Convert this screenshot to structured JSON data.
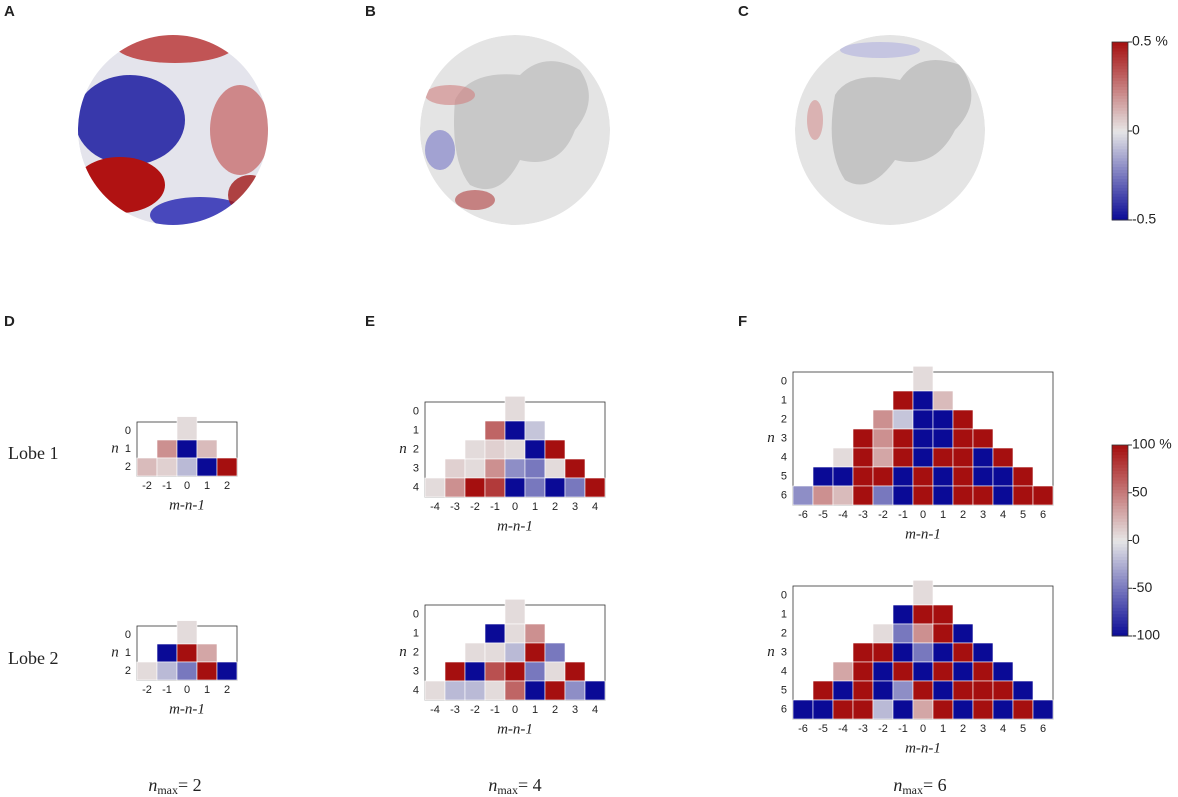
{
  "panel_letters": [
    "A",
    "B",
    "C",
    "D",
    "E",
    "F"
  ],
  "row_labels": [
    "Lobe 1",
    "Lobe 2"
  ],
  "colorbar_top": {
    "ylim": [
      -0.5,
      0.5
    ],
    "yticks": [
      -0.5,
      0,
      {
        "value": 0.5,
        "label": "0.5 %"
      }
    ]
  },
  "colorbar_bottom": {
    "ylim": [
      -100,
      100
    ],
    "yticks": [
      -100,
      -50,
      0,
      50,
      {
        "value": 100,
        "label": "100 %"
      }
    ]
  },
  "heatmaps": [
    {
      "nmax": {
        "n": "n",
        "sub": "max",
        "eq": "= 2"
      },
      "xlabel": "m-n-1",
      "ylabel": "n",
      "x_ticks": [
        -2,
        -1,
        0,
        1,
        2
      ],
      "y_ticks": [
        0,
        1,
        2
      ],
      "lobes": [
        [
          [
            5
          ],
          [
            40,
            -100,
            20
          ],
          [
            20,
            10,
            -20,
            -100,
            100
          ]
        ],
        [
          [
            5
          ],
          [
            -100,
            100,
            30
          ],
          [
            5,
            -20,
            -50,
            100,
            -100
          ]
        ]
      ]
    },
    {
      "nmax": {
        "n": "n",
        "sub": "max",
        "eq": "= 4"
      },
      "xlabel": "m-n-1",
      "ylabel": "n",
      "x_ticks": [
        -4,
        -3,
        -2,
        -1,
        0,
        1,
        2,
        3,
        4
      ],
      "y_ticks": [
        0,
        1,
        2,
        3,
        4
      ],
      "lobes": [
        [
          [
            5
          ],
          [
            60,
            -100,
            -15
          ],
          [
            5,
            10,
            5,
            -100,
            100
          ],
          [
            10,
            5,
            40,
            -40,
            -50,
            5,
            100
          ],
          [
            5,
            40,
            100,
            80,
            -100,
            -50,
            -100,
            -50,
            100
          ]
        ],
        [
          [
            5
          ],
          [
            -100,
            5,
            40
          ],
          [
            5,
            5,
            -20,
            100,
            -50
          ],
          [
            100,
            -100,
            70,
            100,
            -50,
            5,
            100
          ],
          [
            5,
            -20,
            -20,
            5,
            60,
            -100,
            100,
            -40,
            -100
          ]
        ]
      ]
    },
    {
      "nmax": {
        "n": "n",
        "sub": "max",
        "eq": "= 6"
      },
      "xlabel": "m-n-1",
      "ylabel": "n",
      "x_ticks": [
        -6,
        -5,
        -4,
        -3,
        -2,
        -1,
        0,
        1,
        2,
        3,
        4,
        5,
        6
      ],
      "y_ticks": [
        0,
        1,
        2,
        3,
        4,
        5,
        6
      ],
      "lobes": [
        [
          [
            5
          ],
          [
            100,
            -100,
            20
          ],
          [
            40,
            -15,
            -100,
            -100,
            100
          ],
          [
            100,
            40,
            100,
            -100,
            -100,
            100,
            100
          ],
          [
            5,
            100,
            30,
            100,
            -100,
            100,
            100,
            -100,
            100
          ],
          [
            -100,
            -100,
            100,
            100,
            -100,
            100,
            -100,
            100,
            -100,
            -100,
            100
          ],
          [
            -40,
            40,
            20,
            100,
            -50,
            -100,
            100,
            -100,
            100,
            100,
            -100,
            100,
            100
          ]
        ],
        [
          [
            5
          ],
          [
            -100,
            100,
            100
          ],
          [
            5,
            -50,
            40,
            100,
            -100
          ],
          [
            100,
            100,
            -100,
            -50,
            -100,
            100,
            -100
          ],
          [
            30,
            100,
            -100,
            100,
            -100,
            100,
            -100,
            100,
            -100
          ],
          [
            100,
            -100,
            100,
            -100,
            -40,
            100,
            -100,
            100,
            100,
            100,
            -100
          ],
          [
            -100,
            -100,
            100,
            100,
            -20,
            -100,
            30,
            100,
            -100,
            100,
            -100,
            100,
            -100
          ]
        ]
      ]
    }
  ]
}
